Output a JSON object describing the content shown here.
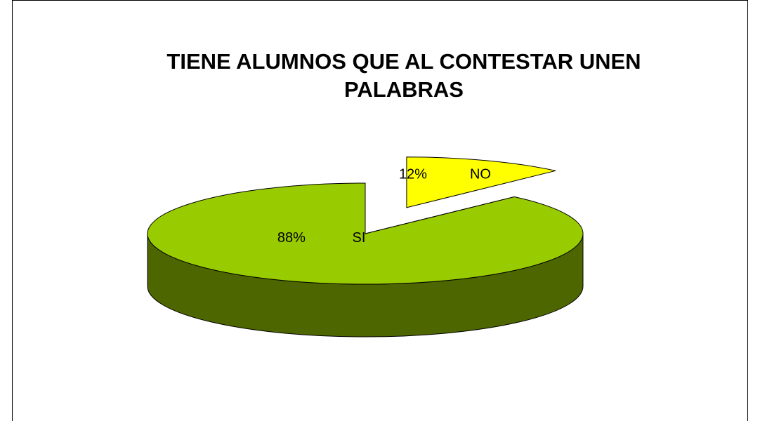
{
  "chart_data": {
    "type": "pie",
    "title": "TIENE ALUMNOS QUE AL CONTESTAR UNEN PALABRAS",
    "categories": [
      "SI",
      "NO"
    ],
    "values": [
      88,
      12
    ],
    "value_labels": [
      "88%",
      "12%"
    ],
    "colors": [
      "#99cc00",
      "#ffff00"
    ],
    "side_colors": [
      "#4d6600",
      "#808000"
    ],
    "exploded": [
      false,
      true
    ]
  }
}
